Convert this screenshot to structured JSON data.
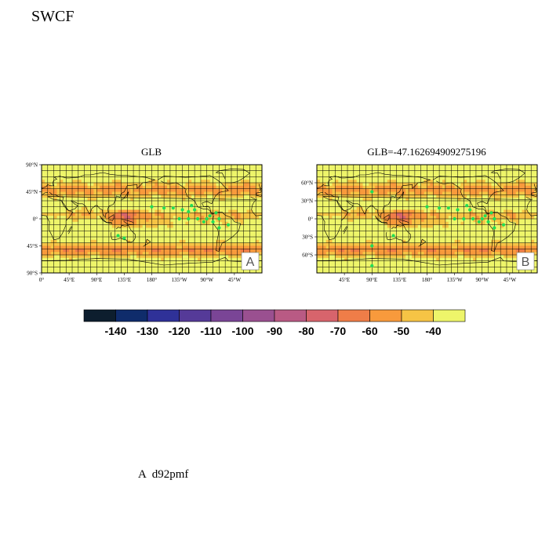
{
  "figure": {
    "title": "SWCF",
    "footer": "A  d92pmf"
  },
  "colors": {
    "levels": [
      "#0d1e2e",
      "#0f2c6b",
      "#2f3198",
      "#553a98",
      "#7a4596",
      "#9a5090",
      "#b95a84",
      "#d7646c",
      "#ef7d48",
      "#f89a3c",
      "#f6c445",
      "#eef56a"
    ],
    "grid": "#000000",
    "station": "#22dd55"
  },
  "chart_data": [
    {
      "type": "heatmap",
      "panel_id": "A",
      "title": "GLB",
      "projection": "cylindrical-equidistant",
      "xlim": [
        0,
        360
      ],
      "ylim": [
        -90,
        90
      ],
      "x_ticks": [
        "0°",
        "45°E",
        "90°E",
        "135°E",
        "180°",
        "135°W",
        "90°W",
        "45°W"
      ],
      "y_ticks": [
        "90°N",
        "45°N",
        "0°",
        "45°S",
        "90°S"
      ],
      "stations": [
        [
          125,
          -28
        ],
        [
          180,
          20
        ],
        [
          200,
          18
        ],
        [
          215,
          18
        ],
        [
          225,
          0
        ],
        [
          230,
          15
        ],
        [
          240,
          0
        ],
        [
          245,
          22
        ],
        [
          250,
          15
        ],
        [
          255,
          0
        ],
        [
          265,
          -5
        ],
        [
          270,
          0
        ],
        [
          280,
          -5
        ],
        [
          285,
          10
        ],
        [
          290,
          0
        ],
        [
          305,
          -10
        ],
        [
          135,
          -32
        ],
        [
          290,
          -15
        ],
        [
          240,
          12
        ],
        [
          275,
          5
        ]
      ],
      "panel_label": "A"
    },
    {
      "type": "heatmap",
      "panel_id": "B",
      "title": "GLB=-47.162694909275196",
      "projection": "cylindrical-equidistant",
      "xlim": [
        0,
        360
      ],
      "ylim": [
        -90,
        90
      ],
      "x_ticks": [
        "45°E",
        "90°E",
        "135°E",
        "180°",
        "135°W",
        "90°W",
        "45°W"
      ],
      "y_ticks": [
        "60°N",
        "30°N",
        "0°",
        "30°S",
        "60°S"
      ],
      "stations": [
        [
          90,
          45
        ],
        [
          90,
          -45
        ],
        [
          90,
          -78
        ],
        [
          125,
          -28
        ],
        [
          180,
          20
        ],
        [
          200,
          18
        ],
        [
          215,
          18
        ],
        [
          225,
          0
        ],
        [
          230,
          15
        ],
        [
          240,
          0
        ],
        [
          245,
          22
        ],
        [
          250,
          15
        ],
        [
          255,
          0
        ],
        [
          265,
          -5
        ],
        [
          270,
          0
        ],
        [
          280,
          -5
        ],
        [
          285,
          10
        ],
        [
          290,
          0
        ],
        [
          305,
          -10
        ],
        [
          290,
          -15
        ],
        [
          275,
          5
        ]
      ],
      "panel_label": "B"
    },
    {
      "type": "colorbar",
      "levels": [
        -140,
        -130,
        -120,
        -110,
        -100,
        -90,
        -80,
        -70,
        -60,
        -50,
        -40
      ],
      "tick_labels": [
        "-140",
        "-130",
        "-120",
        "-110",
        "-100",
        "-90",
        "-80",
        "-70",
        "-60",
        "-50",
        "-40"
      ]
    }
  ]
}
